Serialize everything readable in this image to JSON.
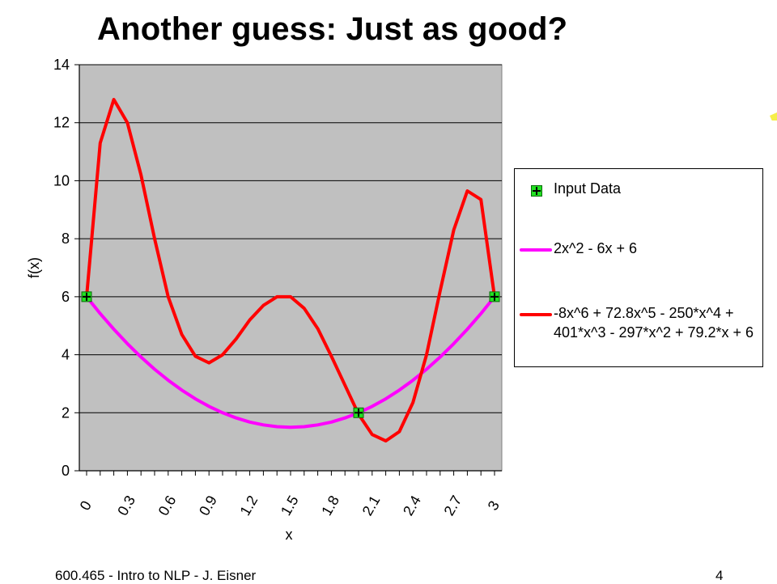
{
  "slide": {
    "title": "Another guess: Just as good?",
    "footer_left": "600.465 - Intro to NLP - J. Eisner",
    "page_number": "4"
  },
  "legend": {
    "items": [
      {
        "label": "Input Data",
        "kind": "marker",
        "color": "#22e022"
      },
      {
        "label": "2x^2 - 6x + 6",
        "kind": "line",
        "color": "#ff00ff"
      },
      {
        "label": "-8x^6 + 72.8x^5 - 250*x^4 + 401*x^3 - 297*x^2 + 79.2*x + 6",
        "kind": "line",
        "color": "#ff0000"
      }
    ]
  },
  "chart_data": {
    "type": "line",
    "title": "",
    "xlabel": "x",
    "ylabel": "f(x)",
    "xlim": [
      0,
      3
    ],
    "ylim": [
      0,
      14
    ],
    "grid": true,
    "legend_position": "right",
    "plot_background": "#c0c0c0",
    "x_tick_labels": [
      "0",
      "0.3",
      "0.6",
      "0.9",
      "1.2",
      "1.5",
      "1.8",
      "2.1",
      "2.4",
      "2.7",
      "3"
    ],
    "x_tick_values": [
      0,
      0.3,
      0.6,
      0.9,
      1.2,
      1.5,
      1.8,
      2.1,
      2.4,
      2.7,
      3
    ],
    "y_ticks": [
      0,
      2,
      4,
      6,
      8,
      10,
      12,
      14
    ],
    "series": [
      {
        "name": "Input Data",
        "kind": "scatter",
        "color": "#22e022",
        "x": [
          0,
          2,
          3
        ],
        "y": [
          6,
          2,
          6
        ]
      },
      {
        "name": "2x^2 - 6x + 6",
        "kind": "line",
        "color": "#ff00ff",
        "x": [
          0,
          0.1,
          0.2,
          0.3,
          0.4,
          0.5,
          0.6,
          0.7,
          0.8,
          0.9,
          1.0,
          1.1,
          1.2,
          1.3,
          1.4,
          1.5,
          1.6,
          1.7,
          1.8,
          1.9,
          2.0,
          2.1,
          2.2,
          2.3,
          2.4,
          2.5,
          2.6,
          2.7,
          2.8,
          2.9,
          3.0
        ],
        "y": [
          6,
          5.42,
          4.88,
          4.38,
          3.92,
          3.5,
          3.12,
          2.78,
          2.48,
          2.22,
          2.0,
          1.82,
          1.68,
          1.58,
          1.52,
          1.5,
          1.52,
          1.58,
          1.68,
          1.82,
          2.0,
          2.22,
          2.48,
          2.78,
          3.12,
          3.5,
          3.92,
          4.38,
          4.88,
          5.42,
          6
        ]
      },
      {
        "name": "-8x^6 + 72.8x^5 - 250*x^4 + 401*x^3 - 297*x^2 + 79.2*x + 6",
        "kind": "line",
        "color": "#ff0000",
        "x": [
          0,
          0.1,
          0.2,
          0.3,
          0.4,
          0.5,
          0.6,
          0.7,
          0.8,
          0.9,
          1.0,
          1.1,
          1.2,
          1.3,
          1.4,
          1.5,
          1.6,
          1.7,
          1.8,
          1.9,
          2.0,
          2.1,
          2.2,
          2.3,
          2.4,
          2.5,
          2.6,
          2.7,
          2.8,
          2.9,
          3.0
        ],
        "y": [
          6,
          11.3,
          12.8,
          12.0,
          10.2,
          8.0,
          6.0,
          4.7,
          3.95,
          3.72,
          4.0,
          4.55,
          5.2,
          5.7,
          6.0,
          6.0,
          5.6,
          4.9,
          3.95,
          2.95,
          1.95,
          1.25,
          1.03,
          1.35,
          2.35,
          4.0,
          6.2,
          8.3,
          9.65,
          9.35,
          6.0
        ]
      }
    ]
  }
}
